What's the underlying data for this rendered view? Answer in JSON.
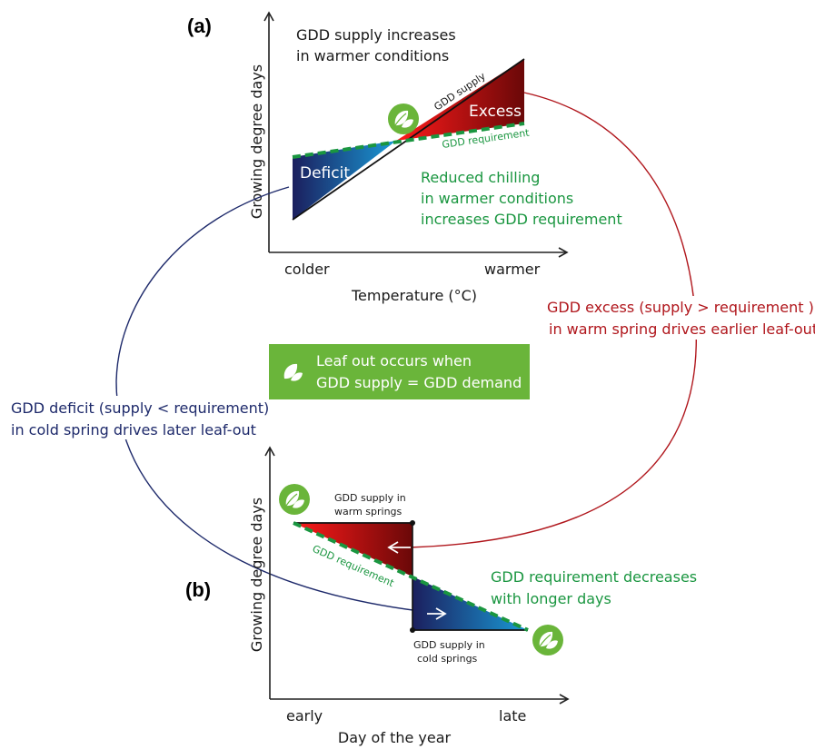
{
  "colors": {
    "deficit_dark": "#1b1f5e",
    "deficit_light": "#1a9ad6",
    "excess_dark": "#7a0a0a",
    "excess_light": "#ff1a1a",
    "requirement_green": "#1a9640",
    "leaf_green": "#6ab53a",
    "callout_green": "#6ab53a",
    "warm_arrow": "#b0161c",
    "cold_arrow": "#1e2a6b"
  },
  "panel_a": {
    "label": "(a)",
    "y_axis_label": "Growing degree days",
    "x_axis_label": "Temperature (°C)",
    "x_tick_left": "colder",
    "x_tick_right": "warmer",
    "note_supply_line1": "GDD supply increases",
    "note_supply_line2": "in warmer conditions",
    "supply_line_label": "GDD supply",
    "requirement_line_label": "GDD requirement",
    "excess_label": "Excess",
    "deficit_label": "Deficit",
    "note_chill_line1": "Reduced chilling",
    "note_chill_line2": "in warmer conditions",
    "note_chill_line3": "increases GDD requirement"
  },
  "callout": {
    "line1": "Leaf out occurs when",
    "line2": "GDD supply = GDD demand",
    "icon": "leaf-icon"
  },
  "left_note": {
    "line1": "GDD deficit (supply < requirement)",
    "line2": "in cold spring drives later leaf-out"
  },
  "right_note": {
    "line1": "GDD excess (supply > requirement )",
    "line2": "in warm spring drives earlier leaf-out"
  },
  "panel_b": {
    "label": "(b)",
    "y_axis_label": "Growing degree days",
    "x_axis_label": "Day of the year",
    "x_tick_left": "early",
    "x_tick_right": "late",
    "warm_label_line1": "GDD supply in",
    "warm_label_line2": "warm springs",
    "cold_label_line1": "GDD supply in",
    "cold_label_line2": "cold springs",
    "requirement_line_label": "GDD requirement",
    "note_line1": "GDD requirement decreases",
    "note_line2": "with longer days"
  }
}
